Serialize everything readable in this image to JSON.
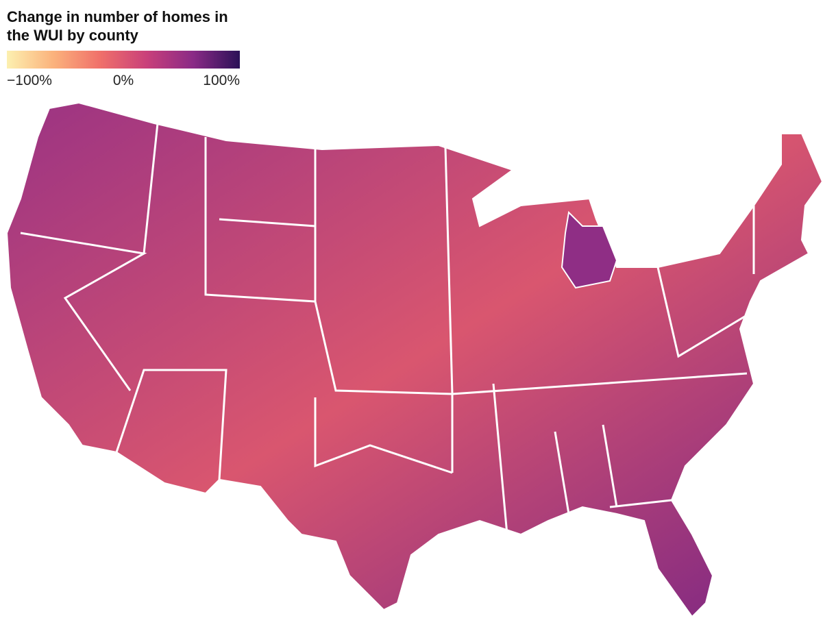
{
  "title_lines": [
    "Change in number of homes in",
    "the WUI by county"
  ],
  "legend": {
    "range": [
      -100,
      100
    ],
    "colors": [
      "#fcf0b0",
      "#fbb27c",
      "#f0706a",
      "#c9407a",
      "#8a2a86",
      "#2b1157"
    ],
    "ticks": [
      {
        "value": -100,
        "label": "−100%"
      },
      {
        "value": 0,
        "label": "0%"
      },
      {
        "value": 100,
        "label": "100%"
      }
    ]
  }
}
